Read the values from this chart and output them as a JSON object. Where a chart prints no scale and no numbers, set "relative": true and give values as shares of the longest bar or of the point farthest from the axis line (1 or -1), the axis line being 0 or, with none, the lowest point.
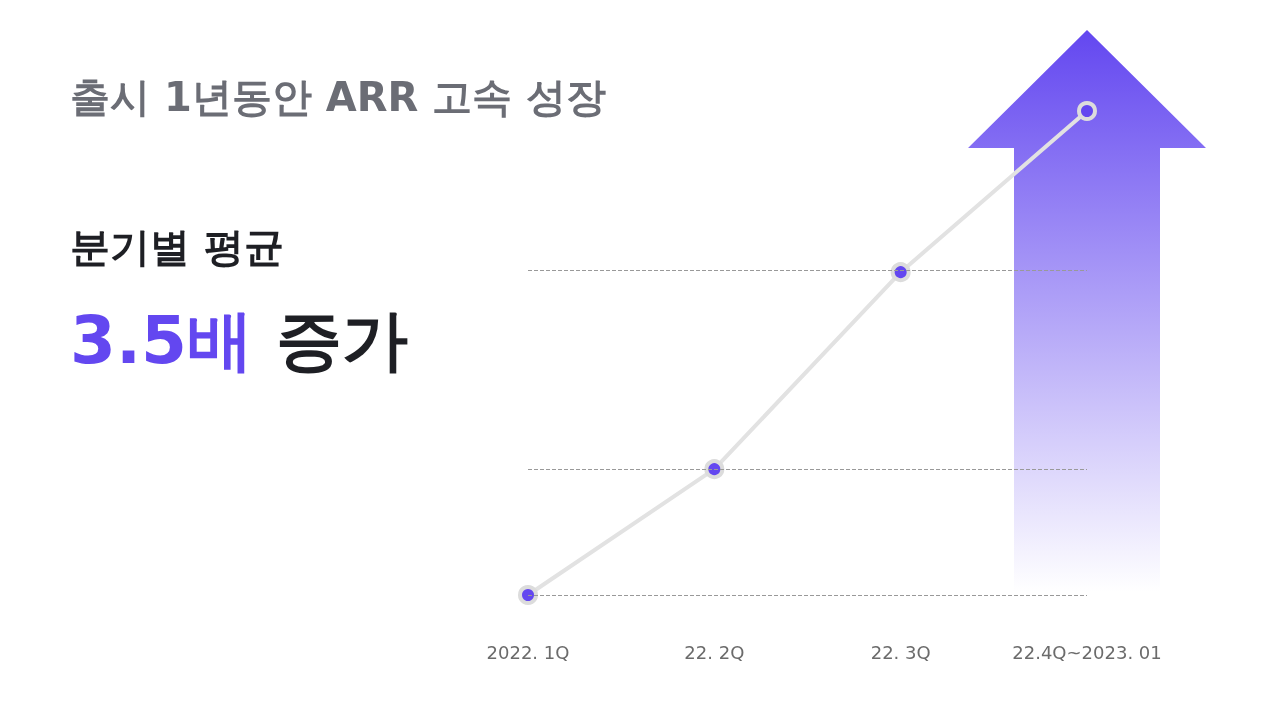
{
  "chart_data": {
    "type": "line",
    "title": "출시 1년동안 ARR 고속 성장",
    "subtitle": "분기별 평균",
    "annotations": [
      "3.5배 증가"
    ],
    "categories": [
      "2022. 1Q",
      "22. 2Q",
      "22. 3Q",
      "22.4Q~2023. 01"
    ],
    "relative": true,
    "series": [
      {
        "color": "#6347f0",
        "values": [
          0,
          0.26,
          0.667,
          1
        ]
      }
    ],
    "ref_lines": [
      {
        "axis": "y",
        "value": 0,
        "color": "#999999",
        "line_style": "dashed"
      },
      {
        "axis": "y",
        "value": 0.26,
        "color": "#999999",
        "line_style": "dashed"
      },
      {
        "axis": "y",
        "value": 0.667,
        "color": "#999999",
        "line_style": "dashed"
      }
    ],
    "marker": "circle",
    "line_style": "solid",
    "grid": false
  }
}
